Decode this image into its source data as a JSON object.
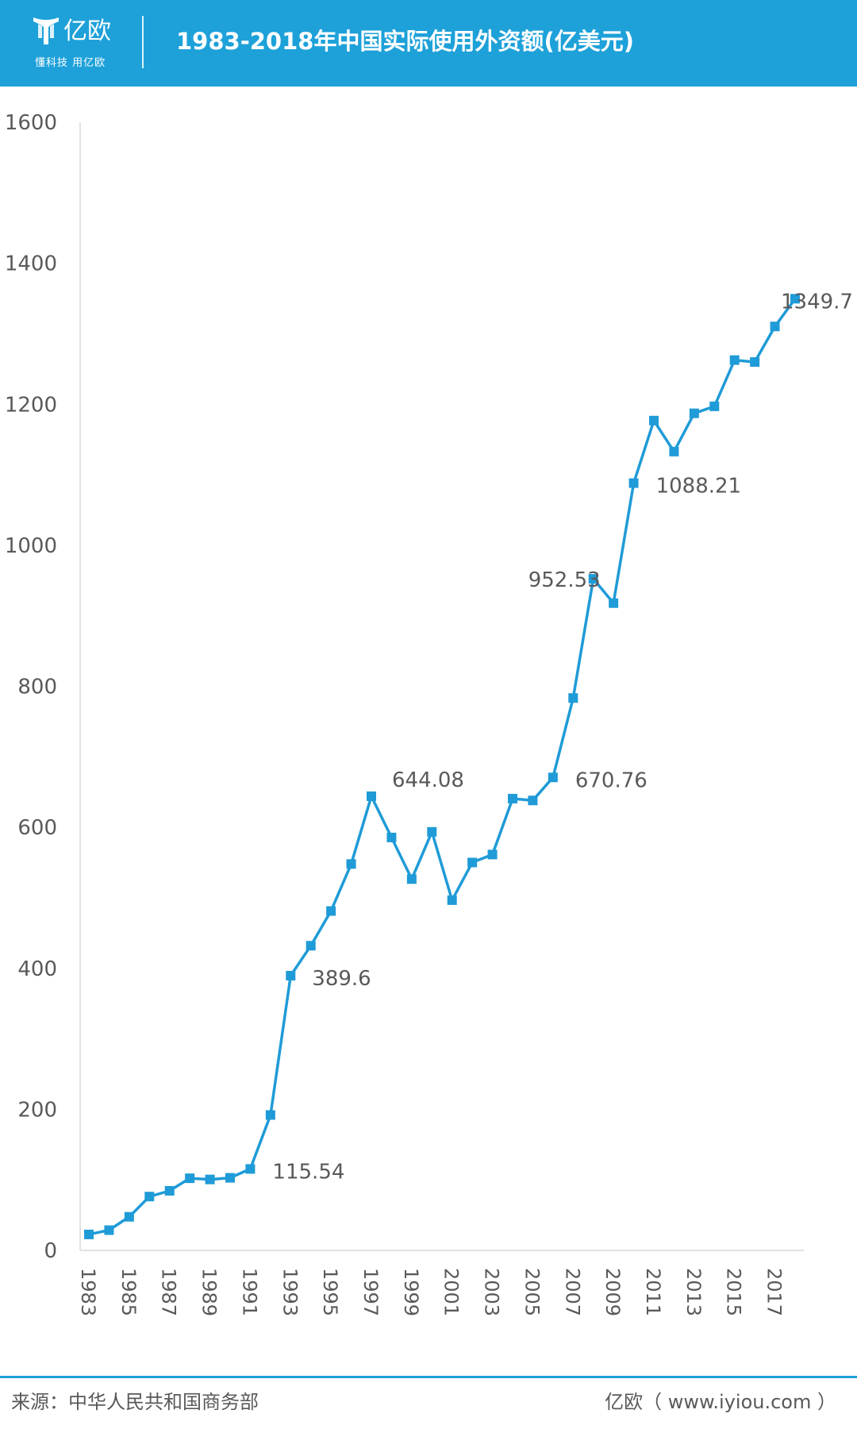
{
  "header": {
    "brand_name": "亿欧",
    "brand_slogan": "懂科技 用亿欧",
    "title": "1983-2018年中国实际使用外资额(亿美元)"
  },
  "chart_data": {
    "type": "line",
    "title": "1983-2018年中国实际使用外资额(亿美元)",
    "xlabel": "",
    "ylabel": "",
    "ylim": [
      0,
      1600
    ],
    "yticks": [
      0,
      200,
      400,
      600,
      800,
      1000,
      1200,
      1400,
      1600
    ],
    "x": [
      1983,
      1984,
      1985,
      1986,
      1987,
      1988,
      1989,
      1990,
      1991,
      1992,
      1993,
      1994,
      1995,
      1996,
      1997,
      1998,
      1999,
      2000,
      2001,
      2002,
      2003,
      2004,
      2005,
      2006,
      2007,
      2008,
      2009,
      2010,
      2011,
      2012,
      2013,
      2014,
      2015,
      2016,
      2017,
      2018
    ],
    "xtick_labels": [
      "1983",
      "1985",
      "1987",
      "1989",
      "1991",
      "1993",
      "1995",
      "1997",
      "1999",
      "2001",
      "2003",
      "2005",
      "2007",
      "2009",
      "2011",
      "2013",
      "2015",
      "2017"
    ],
    "series": [
      {
        "color": "#1f9bd7",
        "values": [
          22.6,
          28.7,
          47.6,
          76.3,
          84.5,
          102.3,
          100.6,
          102.9,
          115.5,
          192.0,
          389.6,
          432.1,
          481.3,
          548.0,
          644.1,
          585.6,
          526.6,
          593.6,
          496.7,
          550.1,
          561.4,
          640.7,
          638.1,
          670.8,
          783.4,
          952.5,
          918.0,
          1088.2,
          1176.9,
          1132.9,
          1187.2,
          1197.1,
          1262.7,
          1260.0,
          1310.4,
          1349.7
        ]
      }
    ],
    "annotations": [
      {
        "x": 1991,
        "y": 115.54,
        "text": "115.54"
      },
      {
        "x": 1993,
        "y": 389.6,
        "text": "389.6"
      },
      {
        "x": 1997,
        "y": 644.08,
        "text": "644.08"
      },
      {
        "x": 2006,
        "y": 670.76,
        "text": "670.76"
      },
      {
        "x": 2008,
        "y": 952.53,
        "text": "952.53"
      },
      {
        "x": 2010,
        "y": 1088.21,
        "text": "1088.21"
      },
      {
        "x": 2018,
        "y": 1349.7,
        "text": "1349.7"
      }
    ],
    "grid": false,
    "legend": "none"
  },
  "footer": {
    "source": "来源：中华人民共和国商务部",
    "credit": "亿欧（ www.iyiou.com ）"
  }
}
